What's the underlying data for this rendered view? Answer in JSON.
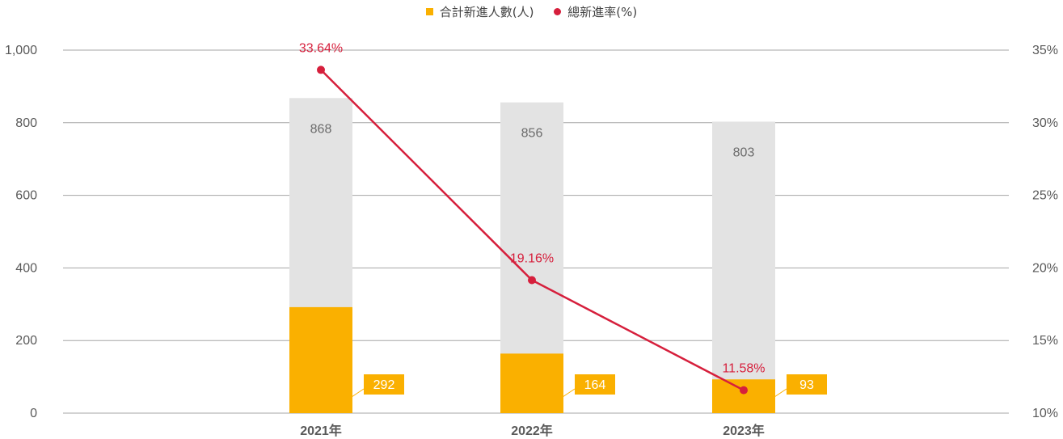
{
  "legend": {
    "bar_series": "合計新進人數(人)",
    "line_series": "總新進率(%)"
  },
  "colors": {
    "new_hires_bar": "#FAB000",
    "total_bar": "#E3E3E3",
    "rate_line": "#D61F3C",
    "grid": "#A6A6A6",
    "tick_text": "#595959",
    "total_label_text": "#6B6B6B",
    "bar_label_text": "#FFFFFF"
  },
  "chart_data": {
    "type": "bar",
    "categories": [
      "2021年",
      "2022年",
      "2023年"
    ],
    "series": [
      {
        "name": "合計新進人數(人)",
        "type": "bar",
        "axis": "left",
        "values": [
          292,
          164,
          93
        ],
        "labels": [
          "292",
          "164",
          "93"
        ]
      },
      {
        "name": "",
        "type": "bar",
        "axis": "left",
        "values": [
          868,
          856,
          803
        ],
        "labels": [
          "868",
          "856",
          "803"
        ]
      },
      {
        "name": "總新進率(%)",
        "type": "line",
        "axis": "right",
        "values": [
          33.64,
          19.16,
          11.58
        ],
        "labels": [
          "33.64%",
          "19.16%",
          "11.58%"
        ]
      }
    ],
    "ylim_left": [
      0,
      1000
    ],
    "ylim_right": [
      10,
      35
    ],
    "yticks_left": [
      "0",
      "200",
      "400",
      "600",
      "800",
      "1,000"
    ],
    "yticks_right": [
      "10%",
      "15%",
      "20%",
      "25%",
      "30%",
      "35%"
    ],
    "grid": true,
    "legend_position": "top-center"
  }
}
